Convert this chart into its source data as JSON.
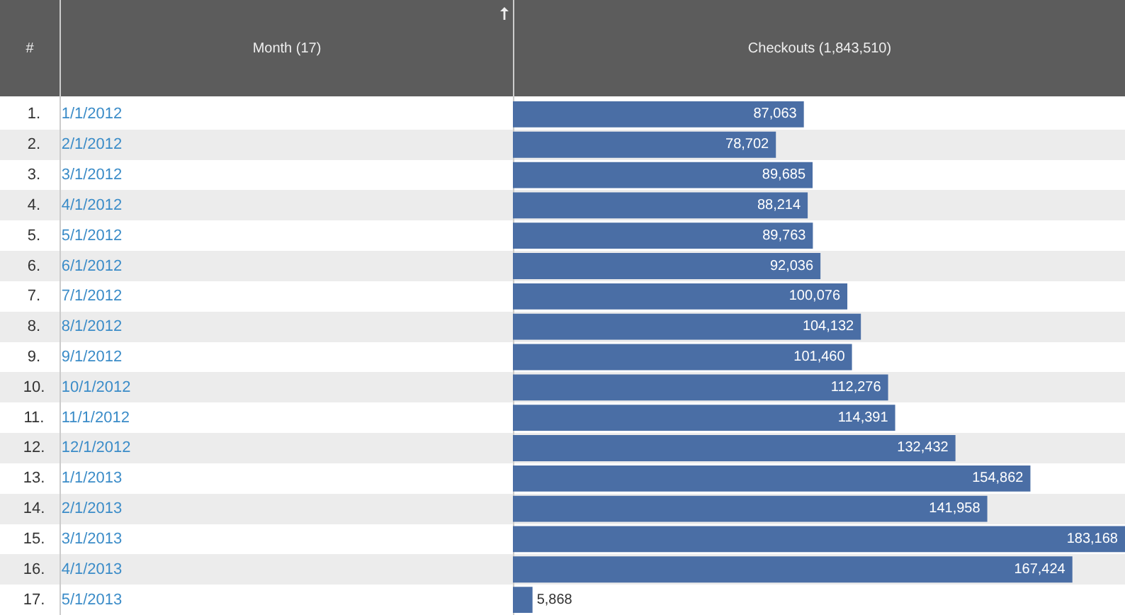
{
  "chart_data": {
    "type": "bar",
    "orientation": "horizontal",
    "xlabel": "Checkouts (1,843,510)",
    "ylabel": "Month (17)",
    "annotations": [
      "#"
    ],
    "categories": [
      "1. 1/1/2012",
      "2. 2/1/2012",
      "3. 3/1/2012",
      "4. 4/1/2012",
      "5. 5/1/2012",
      "6. 6/1/2012",
      "7. 7/1/2012",
      "8. 8/1/2012",
      "9. 9/1/2012",
      "10. 10/1/2012",
      "11. 11/1/2012",
      "12. 12/1/2012",
      "13. 1/1/2013",
      "14. 2/1/2013",
      "15. 3/1/2013",
      "16. 4/1/2013",
      "17. 5/1/2013"
    ],
    "values": [
      87063,
      78702,
      89685,
      88214,
      89763,
      92036,
      100076,
      104132,
      101460,
      112276,
      114391,
      132432,
      154862,
      141958,
      183168,
      167424,
      5868
    ],
    "value_labels": [
      "87,063",
      "78,702",
      "89,685",
      "88,214",
      "89,763",
      "92,036",
      "100,076",
      "104,132",
      "101,460",
      "112,276",
      "114,391",
      "132,432",
      "154,862",
      "141,958",
      "183,168",
      "167,424",
      "5,868"
    ],
    "color": "#4a6ea5"
  }
}
